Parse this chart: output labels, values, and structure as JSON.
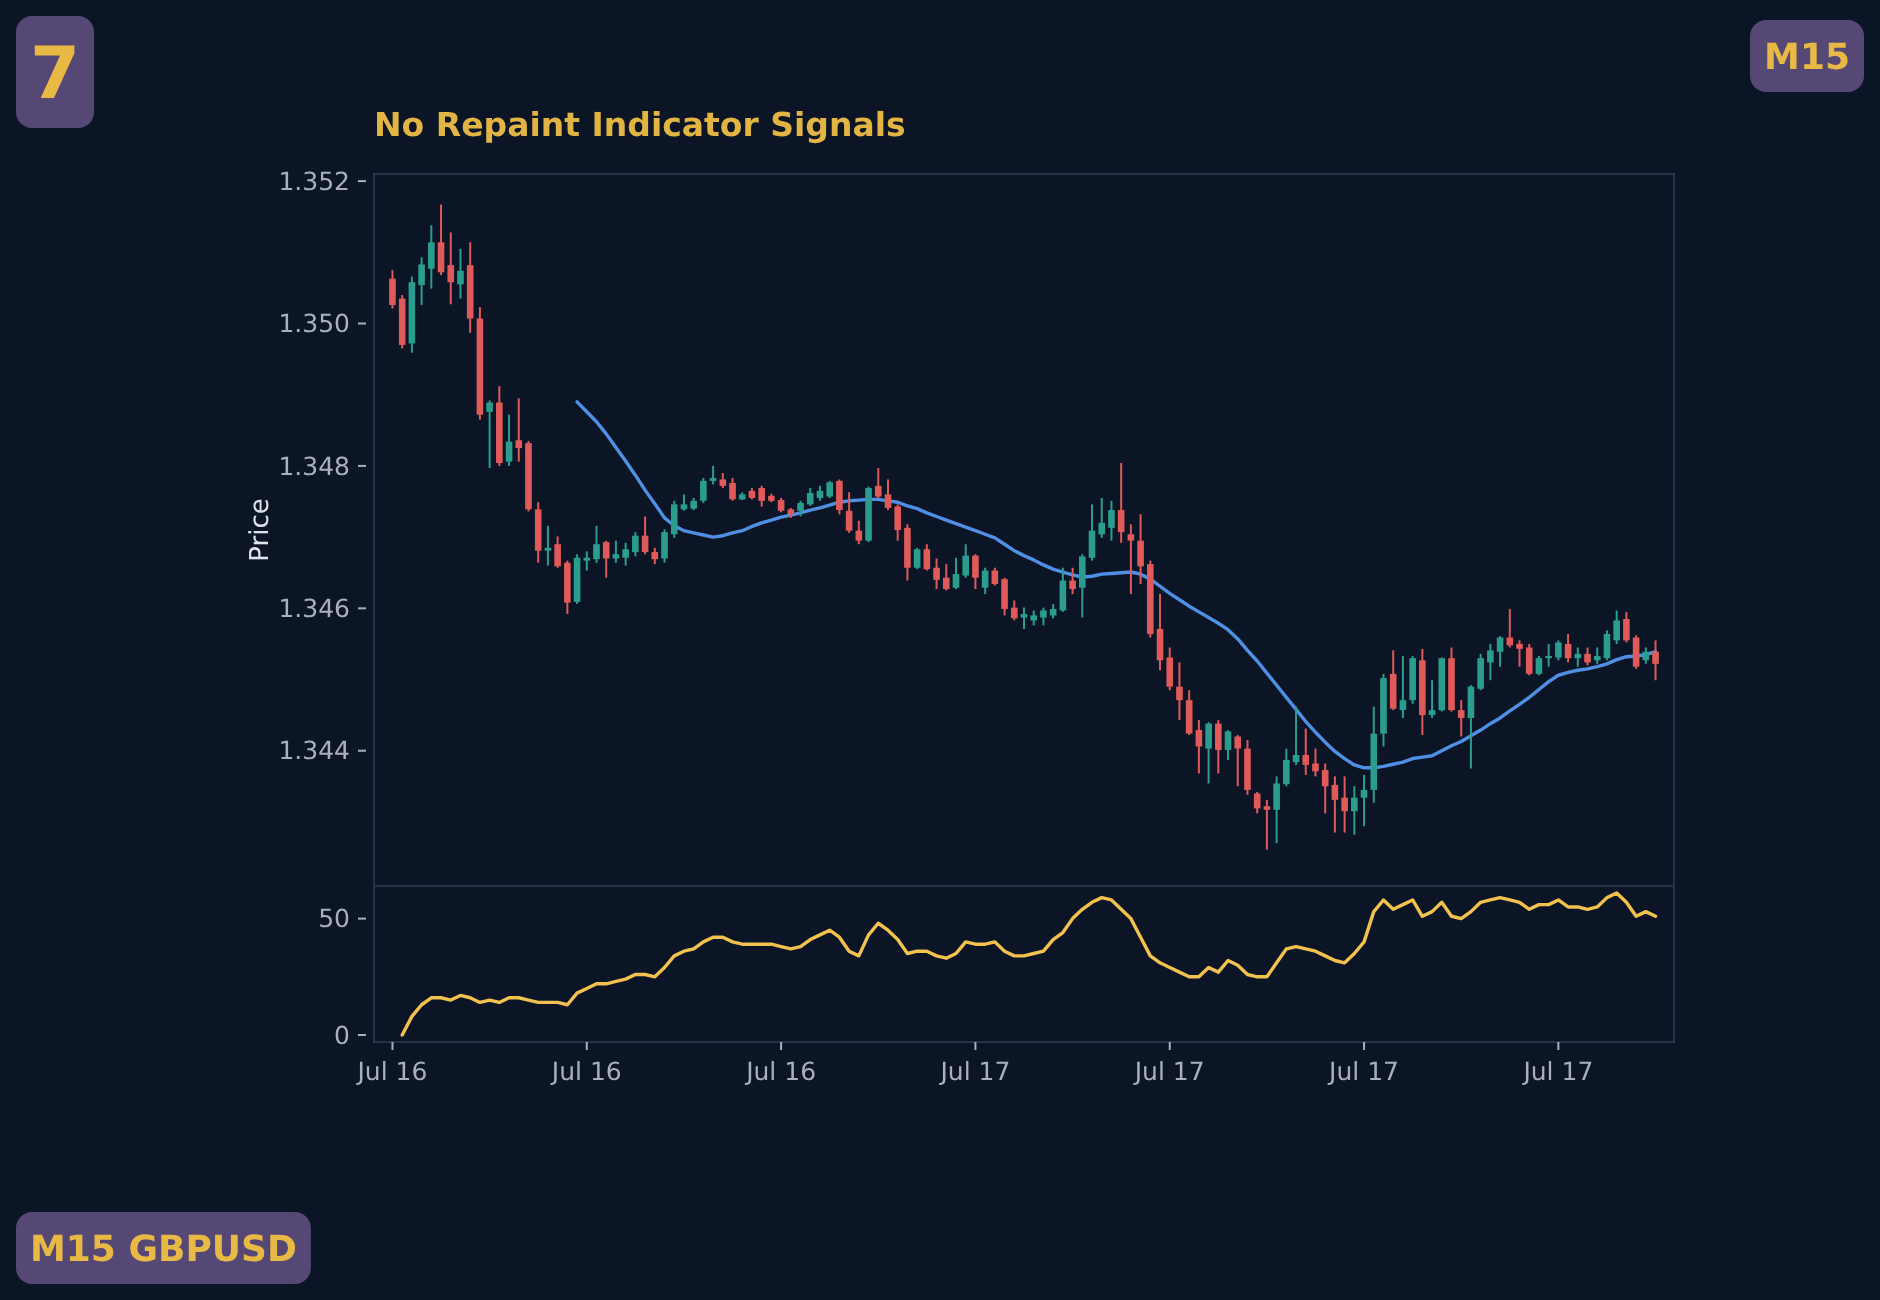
{
  "chart_data": [
    {
      "type": "candlestick",
      "title": "No Repaint Indicator Signals",
      "ylabel": "Price",
      "categories": [
        null,
        null,
        null,
        null,
        null,
        null,
        null,
        null,
        null,
        null,
        null,
        null,
        null,
        null,
        null,
        null,
        null,
        null,
        null,
        null,
        null,
        null,
        null,
        null,
        null,
        null,
        null,
        null,
        null,
        null,
        null,
        null,
        null,
        null,
        null,
        null,
        null,
        null,
        null,
        null,
        null,
        null,
        null,
        null,
        null,
        null,
        null,
        null,
        null,
        null,
        null,
        null,
        null,
        null,
        null,
        null,
        null,
        null,
        null,
        null,
        null,
        null,
        null,
        null,
        null,
        null,
        null,
        null,
        null,
        null,
        null,
        null,
        null,
        null,
        null,
        null,
        null,
        null,
        null,
        null,
        null,
        null,
        null,
        null,
        null,
        null,
        null,
        null,
        null,
        null,
        null,
        null,
        null,
        null,
        null,
        null,
        null,
        null,
        null,
        null,
        null,
        null,
        null,
        null,
        null,
        null,
        null,
        null,
        null,
        null,
        null,
        null,
        null,
        null,
        null,
        null,
        null,
        null,
        null,
        null,
        null,
        null,
        null,
        null,
        null,
        null,
        null,
        null,
        null,
        null,
        null
      ],
      "ohlc": [
        [
          1.35063,
          1.35075,
          1.35021,
          1.35026
        ],
        [
          1.35035,
          1.3504,
          1.34965,
          1.3497
        ],
        [
          1.34972,
          1.35066,
          1.34959,
          1.35058
        ],
        [
          1.35054,
          1.35093,
          1.35026,
          1.35083
        ],
        [
          1.35077,
          1.35138,
          1.35049,
          1.35114
        ],
        [
          1.35114,
          1.35167,
          1.35068,
          1.35072
        ],
        [
          1.35082,
          1.35128,
          1.35027,
          1.35058
        ],
        [
          1.35055,
          1.35105,
          1.35035,
          1.35074
        ],
        [
          1.35082,
          1.35114,
          1.34987,
          1.35007
        ],
        [
          1.35007,
          1.35023,
          1.34865,
          1.34872
        ],
        [
          1.34876,
          1.34892,
          1.34797,
          1.34889
        ],
        [
          1.34889,
          1.34912,
          1.348,
          1.34804
        ],
        [
          1.34806,
          1.34872,
          1.348,
          1.34834
        ],
        [
          1.34836,
          1.34895,
          1.34806,
          1.34825
        ],
        [
          1.34832,
          1.34835,
          1.34736,
          1.34739
        ],
        [
          1.34739,
          1.34749,
          1.34664,
          1.34681
        ],
        [
          1.34681,
          1.34716,
          1.3466,
          1.34685
        ],
        [
          1.3469,
          1.34701,
          1.34657,
          1.34659
        ],
        [
          1.34664,
          1.34667,
          1.34592,
          1.34608
        ],
        [
          1.34609,
          1.34676,
          1.34606,
          1.34671
        ],
        [
          1.34667,
          1.3468,
          1.34653,
          1.34671
        ],
        [
          1.34669,
          1.34716,
          1.34664,
          1.3469
        ],
        [
          1.34693,
          1.34695,
          1.34643,
          1.3467
        ],
        [
          1.3467,
          1.34695,
          1.34664,
          1.34676
        ],
        [
          1.34671,
          1.34692,
          1.3466,
          1.34683
        ],
        [
          1.34679,
          1.34707,
          1.34673,
          1.34702
        ],
        [
          1.34702,
          1.34729,
          1.34676,
          1.34679
        ],
        [
          1.34679,
          1.34685,
          1.34662,
          1.34669
        ],
        [
          1.3467,
          1.34711,
          1.34664,
          1.34707
        ],
        [
          1.34704,
          1.34751,
          1.34699,
          1.34746
        ],
        [
          1.34739,
          1.3476,
          1.34737,
          1.34746
        ],
        [
          1.3474,
          1.34755,
          1.34738,
          1.34751
        ],
        [
          1.34751,
          1.34783,
          1.34748,
          1.34779
        ],
        [
          1.34779,
          1.348,
          1.34774,
          1.34783
        ],
        [
          1.34781,
          1.3479,
          1.34769,
          1.34772
        ],
        [
          1.34776,
          1.34783,
          1.34751,
          1.34753
        ],
        [
          1.34753,
          1.34763,
          1.34752,
          1.3476
        ],
        [
          1.34765,
          1.34769,
          1.34753,
          1.34755
        ],
        [
          1.34769,
          1.34772,
          1.34743,
          1.34751
        ],
        [
          1.34758,
          1.34761,
          1.34749,
          1.34751
        ],
        [
          1.34752,
          1.34755,
          1.34735,
          1.34737
        ],
        [
          1.34739,
          1.34741,
          1.34727,
          1.34732
        ],
        [
          1.34737,
          1.34751,
          1.34729,
          1.34748
        ],
        [
          1.34746,
          1.34769,
          1.34744,
          1.34762
        ],
        [
          1.34755,
          1.34772,
          1.34751,
          1.34765
        ],
        [
          1.34757,
          1.34779,
          1.34755,
          1.34777
        ],
        [
          1.34779,
          1.34781,
          1.34732,
          1.34738
        ],
        [
          1.34737,
          1.34763,
          1.34706,
          1.34709
        ],
        [
          1.34709,
          1.34723,
          1.3469,
          1.34695
        ],
        [
          1.34695,
          1.34771,
          1.34693,
          1.34769
        ],
        [
          1.34772,
          1.34797,
          1.34755,
          1.34757
        ],
        [
          1.3476,
          1.34781,
          1.34738,
          1.34741
        ],
        [
          1.34743,
          1.34746,
          1.34695,
          1.3471
        ],
        [
          1.34713,
          1.34718,
          1.34639,
          1.34657
        ],
        [
          1.34657,
          1.34685,
          1.34655,
          1.34683
        ],
        [
          1.34683,
          1.3469,
          1.34653,
          1.34655
        ],
        [
          1.34657,
          1.3467,
          1.34627,
          1.3464
        ],
        [
          1.34643,
          1.34662,
          1.34625,
          1.34627
        ],
        [
          1.34629,
          1.34671,
          1.34627,
          1.34648
        ],
        [
          1.34646,
          1.3469,
          1.34643,
          1.34674
        ],
        [
          1.34674,
          1.34676,
          1.34627,
          1.34643
        ],
        [
          1.34629,
          1.34657,
          1.3462,
          1.34653
        ],
        [
          1.34653,
          1.34657,
          1.34632,
          1.34634
        ],
        [
          1.34641,
          1.34643,
          1.3459,
          1.34599
        ],
        [
          1.34601,
          1.34611,
          1.34583,
          1.34586
        ],
        [
          1.34587,
          1.34601,
          1.34571,
          1.34592
        ],
        [
          1.34583,
          1.34597,
          1.34576,
          1.3459
        ],
        [
          1.34587,
          1.34601,
          1.34576,
          1.34597
        ],
        [
          1.3459,
          1.34606,
          1.34586,
          1.34599
        ],
        [
          1.34597,
          1.34657,
          1.34595,
          1.34639
        ],
        [
          1.34639,
          1.34657,
          1.3462,
          1.34627
        ],
        [
          1.34629,
          1.34676,
          1.34587,
          1.34673
        ],
        [
          1.34671,
          1.34746,
          1.34667,
          1.34709
        ],
        [
          1.34704,
          1.34755,
          1.34699,
          1.3472
        ],
        [
          1.34713,
          1.34751,
          1.34695,
          1.34738
        ],
        [
          1.34738,
          1.34804,
          1.34692,
          1.34707
        ],
        [
          1.34704,
          1.34718,
          1.3462,
          1.34695
        ],
        [
          1.34695,
          1.34732,
          1.34634,
          1.34659
        ],
        [
          1.34662,
          1.34667,
          1.34559,
          1.34564
        ],
        [
          1.34571,
          1.3462,
          1.34513,
          1.34527
        ],
        [
          1.34531,
          1.34545,
          1.34485,
          1.3449
        ],
        [
          1.3449,
          1.34524,
          1.34443,
          1.34471
        ],
        [
          1.34471,
          1.34485,
          1.34422,
          1.34424
        ],
        [
          1.34429,
          1.34443,
          1.34368,
          1.34406
        ],
        [
          1.34403,
          1.3444,
          1.34354,
          1.34438
        ],
        [
          1.34438,
          1.34443,
          1.34368,
          1.34401
        ],
        [
          1.34401,
          1.34429,
          1.34387,
          1.34427
        ],
        [
          1.3442,
          1.34422,
          1.3435,
          1.34403
        ],
        [
          1.34403,
          1.34415,
          1.34338,
          1.34345
        ],
        [
          1.3434,
          1.34342,
          1.34312,
          1.34319
        ],
        [
          1.34322,
          1.34331,
          1.34261,
          1.34317
        ],
        [
          1.34317,
          1.34364,
          1.3427,
          1.34354
        ],
        [
          1.34353,
          1.34403,
          1.3435,
          1.34387
        ],
        [
          1.34384,
          1.34462,
          1.3438,
          1.34394
        ],
        [
          1.34394,
          1.34431,
          1.34366,
          1.3438
        ],
        [
          1.34382,
          1.34403,
          1.34364,
          1.34371
        ],
        [
          1.34373,
          1.34382,
          1.34312,
          1.3435
        ],
        [
          1.34352,
          1.34364,
          1.34285,
          1.34331
        ],
        [
          1.34334,
          1.34364,
          1.34285,
          1.34315
        ],
        [
          1.34315,
          1.3435,
          1.34282,
          1.34334
        ],
        [
          1.34334,
          1.34366,
          1.34294,
          1.34345
        ],
        [
          1.34345,
          1.34462,
          1.34327,
          1.34424
        ],
        [
          1.34424,
          1.34508,
          1.34406,
          1.34502
        ],
        [
          1.34508,
          1.34541,
          1.34457,
          1.34459
        ],
        [
          1.34457,
          1.34533,
          1.34446,
          1.34471
        ],
        [
          1.34471,
          1.34533,
          1.34466,
          1.3453
        ],
        [
          1.34527,
          1.34543,
          1.34422,
          1.3445
        ],
        [
          1.3445,
          1.34499,
          1.34446,
          1.34457
        ],
        [
          1.34457,
          1.34531,
          1.34455,
          1.3453
        ],
        [
          1.3453,
          1.34545,
          1.34455,
          1.34457
        ],
        [
          1.34457,
          1.34471,
          1.3442,
          1.34446
        ],
        [
          1.34446,
          1.34492,
          1.34375,
          1.3449
        ],
        [
          1.34487,
          1.34536,
          1.34485,
          1.3453
        ],
        [
          1.34524,
          1.3455,
          1.34499,
          1.34541
        ],
        [
          1.34539,
          1.34561,
          1.34518,
          1.34559
        ],
        [
          1.34559,
          1.34599,
          1.34545,
          1.34548
        ],
        [
          1.3455,
          1.34555,
          1.34518,
          1.34543
        ],
        [
          1.34545,
          1.3455,
          1.34506,
          1.34508
        ],
        [
          1.34508,
          1.34533,
          1.34506,
          1.3453
        ],
        [
          1.3453,
          1.3455,
          1.34518,
          1.34533
        ],
        [
          1.34531,
          1.34555,
          1.34527,
          1.34552
        ],
        [
          1.3455,
          1.34564,
          1.34524,
          1.3453
        ],
        [
          1.3453,
          1.34545,
          1.34518,
          1.34536
        ],
        [
          1.34536,
          1.34545,
          1.3452,
          1.34524
        ],
        [
          1.34527,
          1.34545,
          1.34522,
          1.34533
        ],
        [
          1.3453,
          1.34569,
          1.34527,
          1.34564
        ],
        [
          1.34555,
          1.34597,
          1.3455,
          1.34583
        ],
        [
          1.34585,
          1.34595,
          1.34552,
          1.34555
        ],
        [
          1.34559,
          1.34562,
          1.34515,
          1.34518
        ],
        [
          1.34527,
          1.34545,
          1.34522,
          1.34539
        ],
        [
          1.34539,
          1.34555,
          1.34499,
          1.34522
        ]
      ],
      "colors": [
        "#e05a5a",
        "#e05a5a",
        "#2a9d8f",
        "#2a9d8f",
        "#2a9d8f",
        "#e05a5a",
        "#e05a5a",
        "#2a9d8f",
        "#e05a5a",
        "#e05a5a",
        "#2a9d8f",
        "#e05a5a",
        "#2a9d8f",
        "#e05a5a",
        "#e05a5a",
        "#e05a5a",
        "#2a9d8f",
        "#e05a5a",
        "#e05a5a",
        "#2a9d8f",
        "#2a9d8f",
        "#2a9d8f",
        "#e05a5a",
        "#2a9d8f",
        "#2a9d8f",
        "#2a9d8f",
        "#e05a5a",
        "#e05a5a",
        "#2a9d8f",
        "#2a9d8f",
        "#2a9d8f",
        "#2a9d8f",
        "#2a9d8f",
        "#2a9d8f",
        "#e05a5a",
        "#e05a5a",
        "#2a9d8f",
        "#e05a5a",
        "#e05a5a",
        "#e05a5a",
        "#e05a5a",
        "#e05a5a",
        "#2a9d8f",
        "#2a9d8f",
        "#2a9d8f",
        "#2a9d8f",
        "#e05a5a",
        "#e05a5a",
        "#e05a5a",
        "#2a9d8f",
        "#e05a5a",
        "#e05a5a",
        "#e05a5a",
        "#e05a5a",
        "#2a9d8f",
        "#e05a5a",
        "#e05a5a",
        "#e05a5a",
        "#2a9d8f",
        "#2a9d8f",
        "#e05a5a",
        "#2a9d8f",
        "#e05a5a",
        "#e05a5a",
        "#e05a5a",
        "#2a9d8f",
        "#2a9d8f",
        "#2a9d8f",
        "#2a9d8f",
        "#2a9d8f",
        "#e05a5a",
        "#2a9d8f",
        "#2a9d8f",
        "#2a9d8f",
        "#2a9d8f",
        "#e05a5a",
        "#e05a5a",
        "#e05a5a",
        "#e05a5a",
        "#e05a5a",
        "#e05a5a",
        "#e05a5a",
        "#e05a5a",
        "#e05a5a",
        "#2a9d8f",
        "#e05a5a",
        "#2a9d8f",
        "#e05a5a",
        "#e05a5a",
        "#e05a5a",
        "#e05a5a",
        "#2a9d8f",
        "#2a9d8f",
        "#2a9d8f",
        "#e05a5a",
        "#e05a5a",
        "#e05a5a",
        "#e05a5a",
        "#e05a5a",
        "#2a9d8f",
        "#2a9d8f",
        "#2a9d8f",
        "#2a9d8f",
        "#e05a5a",
        "#2a9d8f",
        "#2a9d8f",
        "#e05a5a",
        "#2a9d8f",
        "#2a9d8f",
        "#e05a5a",
        "#e05a5a",
        "#2a9d8f",
        "#2a9d8f",
        "#2a9d8f",
        "#2a9d8f",
        "#e05a5a",
        "#e05a5a",
        "#e05a5a",
        "#2a9d8f",
        "#2a9d8f",
        "#2a9d8f",
        "#e05a5a",
        "#2a9d8f",
        "#e05a5a",
        "#2a9d8f",
        "#2a9d8f",
        "#2a9d8f",
        "#e05a5a",
        "#e05a5a",
        "#2a9d8f",
        "#e05a5a"
      ],
      "series": [
        {
          "type": "line",
          "color": "#4f90e4",
          "values": [
            null,
            null,
            null,
            null,
            null,
            null,
            null,
            null,
            null,
            null,
            null,
            null,
            null,
            null,
            null,
            null,
            null,
            null,
            null,
            1.3489,
            1.34876,
            1.34862,
            1.34845,
            1.34826,
            1.34807,
            1.34787,
            1.34766,
            1.34747,
            1.34727,
            1.34716,
            1.34709,
            1.34706,
            1.34703,
            1.347,
            1.34702,
            1.34706,
            1.34709,
            1.34715,
            1.3472,
            1.34724,
            1.34728,
            1.34731,
            1.34734,
            1.34738,
            1.34741,
            1.34745,
            1.34749,
            1.34751,
            1.34752,
            1.34753,
            1.34753,
            1.34751,
            1.34749,
            1.34744,
            1.3474,
            1.34734,
            1.34729,
            1.34724,
            1.34719,
            1.34714,
            1.34709,
            1.34704,
            1.34699,
            1.3469,
            1.34681,
            1.34674,
            1.34668,
            1.34661,
            1.34655,
            1.34651,
            1.34647,
            1.34644,
            1.34645,
            1.34648,
            1.34649,
            1.3465,
            1.34651,
            1.34648,
            1.34641,
            1.34631,
            1.34621,
            1.34612,
            1.34603,
            1.34595,
            1.34587,
            1.34579,
            1.3457,
            1.34557,
            1.34541,
            1.34526,
            1.34509,
            1.34492,
            1.34475,
            1.34458,
            1.34441,
            1.34426,
            1.34412,
            1.34399,
            1.34389,
            1.3438,
            1.34376,
            1.34376,
            1.34378,
            1.34381,
            1.34384,
            1.34389,
            1.34391,
            1.34393,
            1.344,
            1.34407,
            1.34413,
            1.34421,
            1.34429,
            1.34438,
            1.34446,
            1.34456,
            1.34465,
            1.34475,
            1.34486,
            1.34497,
            1.34506,
            1.3451,
            1.34513,
            1.34515,
            1.34518,
            1.34522,
            1.34528,
            1.34532,
            1.34533,
            1.34535,
            1.34539
          ]
        }
      ],
      "ylim": [
        1.3421,
        1.3521
      ],
      "yticks": [
        1.344,
        1.346,
        1.348,
        {
          "value": 1.35,
          "label": "1.350"
        },
        1.352
      ],
      "annotations": [
        "7",
        "M15",
        "M15 GBPUSD"
      ]
    },
    {
      "type": "line",
      "categories": [
        "Jul 16",
        null,
        null,
        null,
        null,
        null,
        null,
        null,
        null,
        null,
        null,
        null,
        null,
        null,
        null,
        null,
        null,
        null,
        null,
        null,
        "Jul 16",
        null,
        null,
        null,
        null,
        null,
        null,
        null,
        null,
        null,
        null,
        null,
        null,
        null,
        null,
        null,
        null,
        null,
        null,
        null,
        "Jul 16",
        null,
        null,
        null,
        null,
        null,
        null,
        null,
        null,
        null,
        null,
        null,
        null,
        null,
        null,
        null,
        null,
        null,
        null,
        null,
        "Jul 17",
        null,
        null,
        null,
        null,
        null,
        null,
        null,
        null,
        null,
        null,
        null,
        null,
        null,
        null,
        null,
        null,
        null,
        null,
        null,
        "Jul 17",
        null,
        null,
        null,
        null,
        null,
        null,
        null,
        null,
        null,
        null,
        null,
        null,
        null,
        null,
        null,
        null,
        null,
        null,
        null,
        "Jul 17",
        null,
        null,
        null,
        null,
        null,
        null,
        null,
        null,
        null,
        null,
        null,
        null,
        null,
        null,
        null,
        null,
        null,
        null,
        null,
        "Jul 17",
        null,
        null,
        null,
        null,
        null,
        null,
        null,
        null,
        null,
        null
      ],
      "values": [
        null,
        0,
        8,
        13,
        16,
        16,
        15,
        17,
        16,
        14,
        15,
        14,
        16,
        16,
        15,
        14,
        14,
        14,
        13,
        18,
        20,
        22,
        22,
        23,
        24,
        26,
        26,
        25,
        29,
        34,
        36,
        37,
        40,
        42,
        42,
        40,
        39,
        39,
        39,
        39,
        38,
        37,
        38,
        41,
        43,
        45,
        42,
        36,
        34,
        43,
        48,
        45,
        41,
        35,
        36,
        36,
        34,
        33,
        35,
        40,
        39,
        39,
        40,
        36,
        34,
        34,
        35,
        36,
        41,
        44,
        50,
        54,
        57,
        59,
        58,
        54,
        50,
        42,
        34,
        31,
        29,
        27,
        25,
        25,
        29,
        27,
        32,
        30,
        26,
        25,
        25,
        31,
        37,
        38,
        37,
        36,
        34,
        32,
        31,
        35,
        40,
        53,
        58,
        54,
        56,
        58,
        51,
        53,
        57,
        51,
        50,
        53,
        57,
        58,
        59,
        58,
        57,
        54,
        56,
        56,
        58,
        55,
        55,
        54,
        55,
        59,
        61,
        57,
        51,
        53,
        51
      ],
      "color": "#f2c14e",
      "ylim": [
        -3,
        64
      ],
      "yticks": [
        0,
        50
      ]
    }
  ]
}
